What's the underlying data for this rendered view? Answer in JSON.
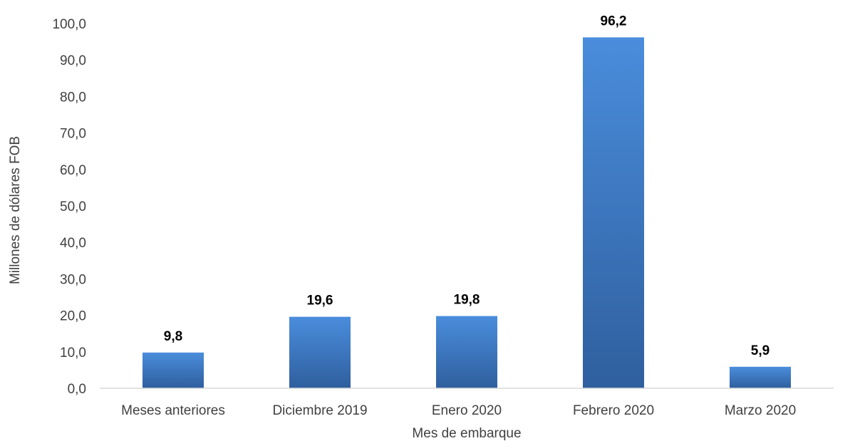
{
  "chart_data": {
    "type": "bar",
    "title": "",
    "xlabel": "Mes de embarque",
    "ylabel": "Millones de dólares FOB",
    "ylim": [
      0,
      100
    ],
    "yticks": [
      "0,0",
      "10,0",
      "20,0",
      "30,0",
      "40,0",
      "50,0",
      "60,0",
      "70,0",
      "80,0",
      "90,0",
      "100,0"
    ],
    "categories": [
      "Meses anteriores",
      "Diciembre 2019",
      "Enero 2020",
      "Febrero 2020",
      "Marzo 2020"
    ],
    "values": [
      9.8,
      19.6,
      19.8,
      96.2,
      5.9
    ],
    "data_labels": [
      "9,8",
      "19,6",
      "19,8",
      "96,2",
      "5,9"
    ],
    "grid": false,
    "legend": "none",
    "colors": {
      "bar_top": "#4a8ddc",
      "bar_bottom": "#2f5f9e",
      "axis": "#d9d9d9"
    }
  }
}
